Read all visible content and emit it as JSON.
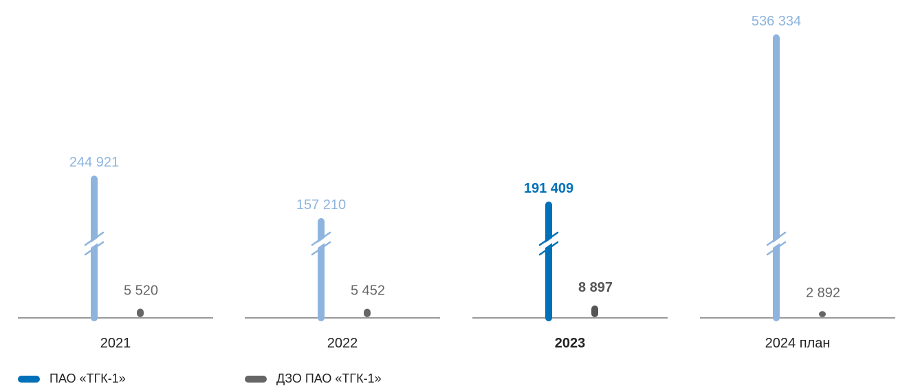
{
  "chart_data": {
    "type": "bar",
    "categories": [
      "2021",
      "2022",
      "2023",
      "2024 план"
    ],
    "highlight_index": 2,
    "broken_axis": true,
    "series": [
      {
        "name": "ПАО «ТГК-1»",
        "values": [
          244921,
          157210,
          191409,
          536334
        ],
        "labels": [
          "244 921",
          "157 210",
          "191 409",
          "536 334"
        ],
        "color": "#0070b8",
        "muted_color": "#8eb4de"
      },
      {
        "name": "ДЗО ПАО «ТГК-1»",
        "values": [
          5520,
          5452,
          8897,
          2892
        ],
        "labels": [
          "5 520",
          "5 452",
          "8 897",
          "2 892"
        ],
        "color": "#666666",
        "muted_color": "#555555"
      }
    ]
  }
}
